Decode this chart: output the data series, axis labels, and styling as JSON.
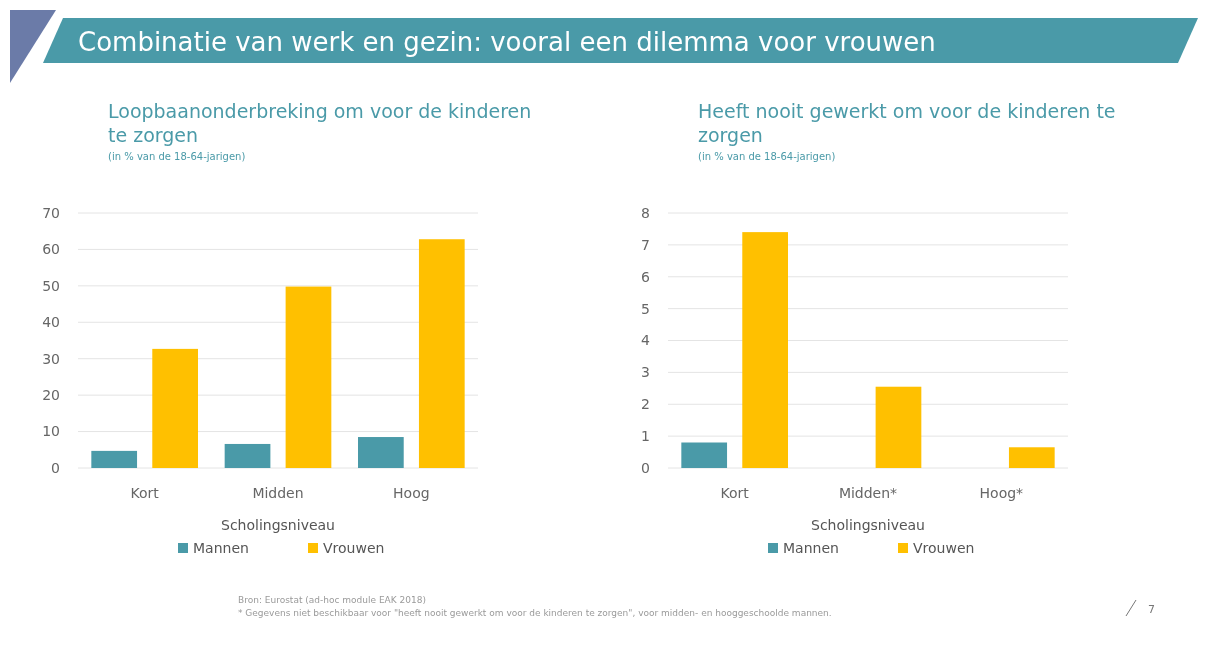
{
  "chart_data": [
    {
      "type": "bar",
      "title": "Loopbaanonderbreking om voor de kinderen te zorgen",
      "subtitle": "(in % van de 18-64-jarigen)",
      "xlabel": "Scholingsniveau",
      "categories": [
        "Kort",
        "Midden",
        "Hoog"
      ],
      "series": [
        {
          "name": "Mannen",
          "color": "#4a9aa8",
          "values": [
            4.7,
            6.6,
            8.5
          ]
        },
        {
          "name": "Vrouwen",
          "color": "#ffc000",
          "values": [
            32.7,
            49.8,
            62.8
          ]
        }
      ],
      "ylim": [
        0,
        70
      ],
      "yticks": [
        0,
        10,
        20,
        30,
        40,
        50,
        60,
        70
      ],
      "grid": "y",
      "legend": "bottom",
      "annotations": [
        "Combinatie van werk en gezin: vooral een dilemma voor vrouwen"
      ]
    },
    {
      "type": "bar",
      "title": "Heeft nooit gewerkt om voor de kinderen te zorgen",
      "subtitle": "(in % van de 18-64-jarigen)",
      "xlabel": "Scholingsniveau",
      "categories": [
        "Kort",
        "Midden*",
        "Hoog*"
      ],
      "series": [
        {
          "name": "Mannen",
          "color": "#4a9aa8",
          "values": [
            0.8,
            null,
            null
          ]
        },
        {
          "name": "Vrouwen",
          "color": "#ffc000",
          "values": [
            7.4,
            2.55,
            0.65
          ]
        }
      ],
      "ylim": [
        0,
        8
      ],
      "yticks": [
        0,
        1,
        2,
        3,
        4,
        5,
        6,
        7,
        8
      ],
      "grid": "y",
      "legend": "bottom",
      "annotations": [
        "Bron: Eurostat (ad-hoc module EAK 2018)",
        "* Gegevens niet beschikbaar voor \"heeft nooit gewerkt om voor de kinderen te zorgen\", voor midden- en hooggeschoolde mannen.",
        "7"
      ]
    }
  ]
}
